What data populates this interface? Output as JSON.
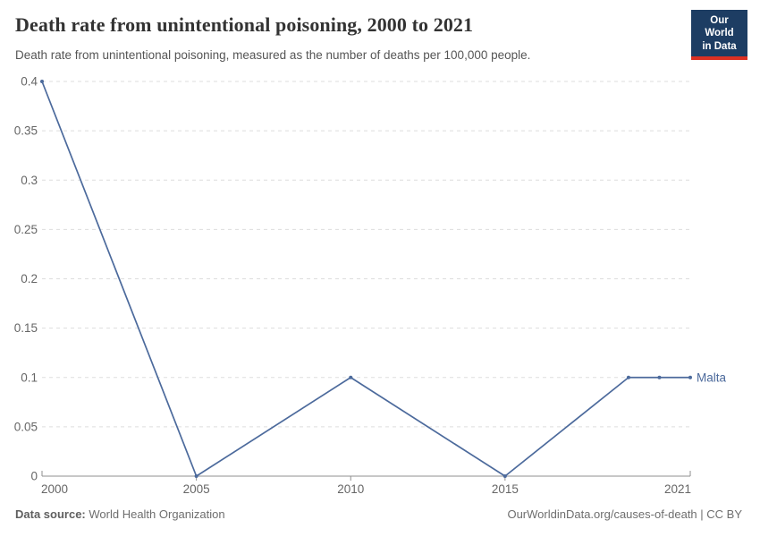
{
  "header": {
    "title": "Death rate from unintentional poisoning, 2000 to 2021",
    "subtitle": "Death rate from unintentional poisoning, measured as the number of deaths per 100,000 people.",
    "logo": {
      "line1": "Our World",
      "line2": "in Data",
      "bg_color": "#1d3d63",
      "accent_color": "#dc3022"
    }
  },
  "chart_data": {
    "type": "line",
    "title": "Death rate from unintentional poisoning, 2000 to 2021",
    "xlabel": "",
    "ylabel": "",
    "xlim": [
      2000,
      2021
    ],
    "ylim": [
      0,
      0.4
    ],
    "grid": true,
    "legend_position": "end-of-line label",
    "xticks": [
      2000,
      2005,
      2010,
      2015,
      2021
    ],
    "ytick_labels": [
      "0",
      "0.05",
      "0.1",
      "0.15",
      "0.2",
      "0.25",
      "0.3",
      "0.35",
      "0.4"
    ],
    "series": [
      {
        "name": "Malta",
        "color": "#4c6a9c",
        "values": [
          {
            "year": 2000,
            "value": 0.4
          },
          {
            "year": 2005,
            "value": 0
          },
          {
            "year": 2010,
            "value": 0.1
          },
          {
            "year": 2015,
            "value": 0
          },
          {
            "year": 2019,
            "value": 0.1
          },
          {
            "year": 2020,
            "value": 0.1
          },
          {
            "year": 2021,
            "value": 0.1
          }
        ]
      }
    ],
    "colors": {
      "gridline": "#dddddd",
      "axis": "#8f8f8f",
      "tick_text": "#666666"
    }
  },
  "footer": {
    "source_label": "Data source:",
    "source_value": "World Health Organization",
    "credit": "OurWorldinData.org/causes-of-death | CC BY"
  }
}
